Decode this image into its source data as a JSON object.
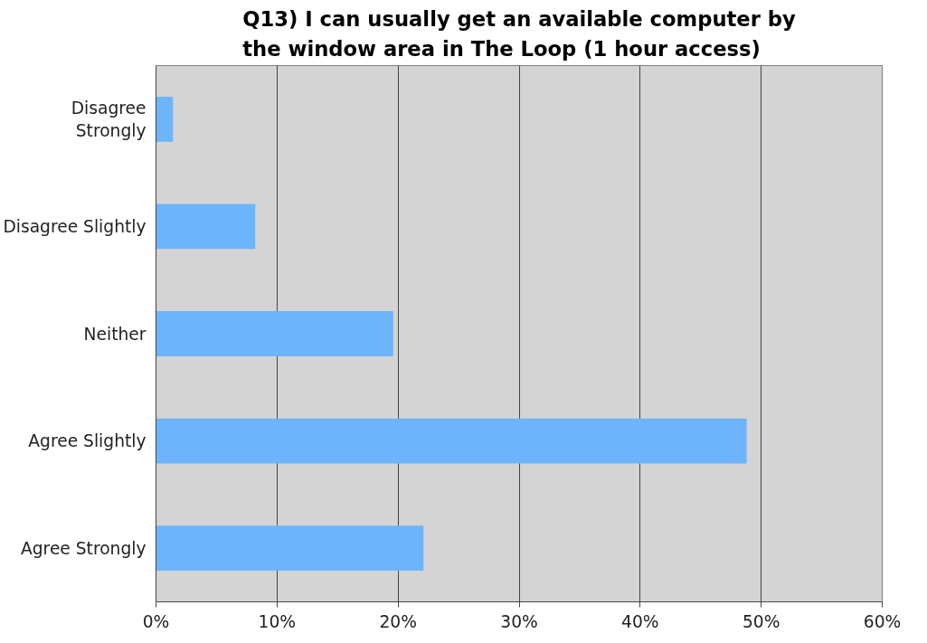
{
  "chart_data": {
    "type": "bar",
    "orientation": "horizontal",
    "title": "Q13) I can usually get an available computer by\nthe window area in The Loop (1 hour access)",
    "categories": [
      "Disagree\nStrongly",
      "Disagree Slightly",
      "Neither",
      "Agree Slightly",
      "Agree Strongly"
    ],
    "values": [
      1.4,
      8.2,
      19.6,
      48.8,
      22.1
    ],
    "color": "#6eb4fa",
    "xlim": [
      0,
      60
    ],
    "xticks": [
      {
        "value": 0,
        "label": "0%"
      },
      {
        "value": 10,
        "label": "10%"
      },
      {
        "value": 20,
        "label": "20%"
      },
      {
        "value": 30,
        "label": "30%"
      },
      {
        "value": 40,
        "label": "40%"
      },
      {
        "value": 50,
        "label": "50%"
      },
      {
        "value": 60,
        "label": "60%"
      }
    ],
    "grid": "x"
  }
}
